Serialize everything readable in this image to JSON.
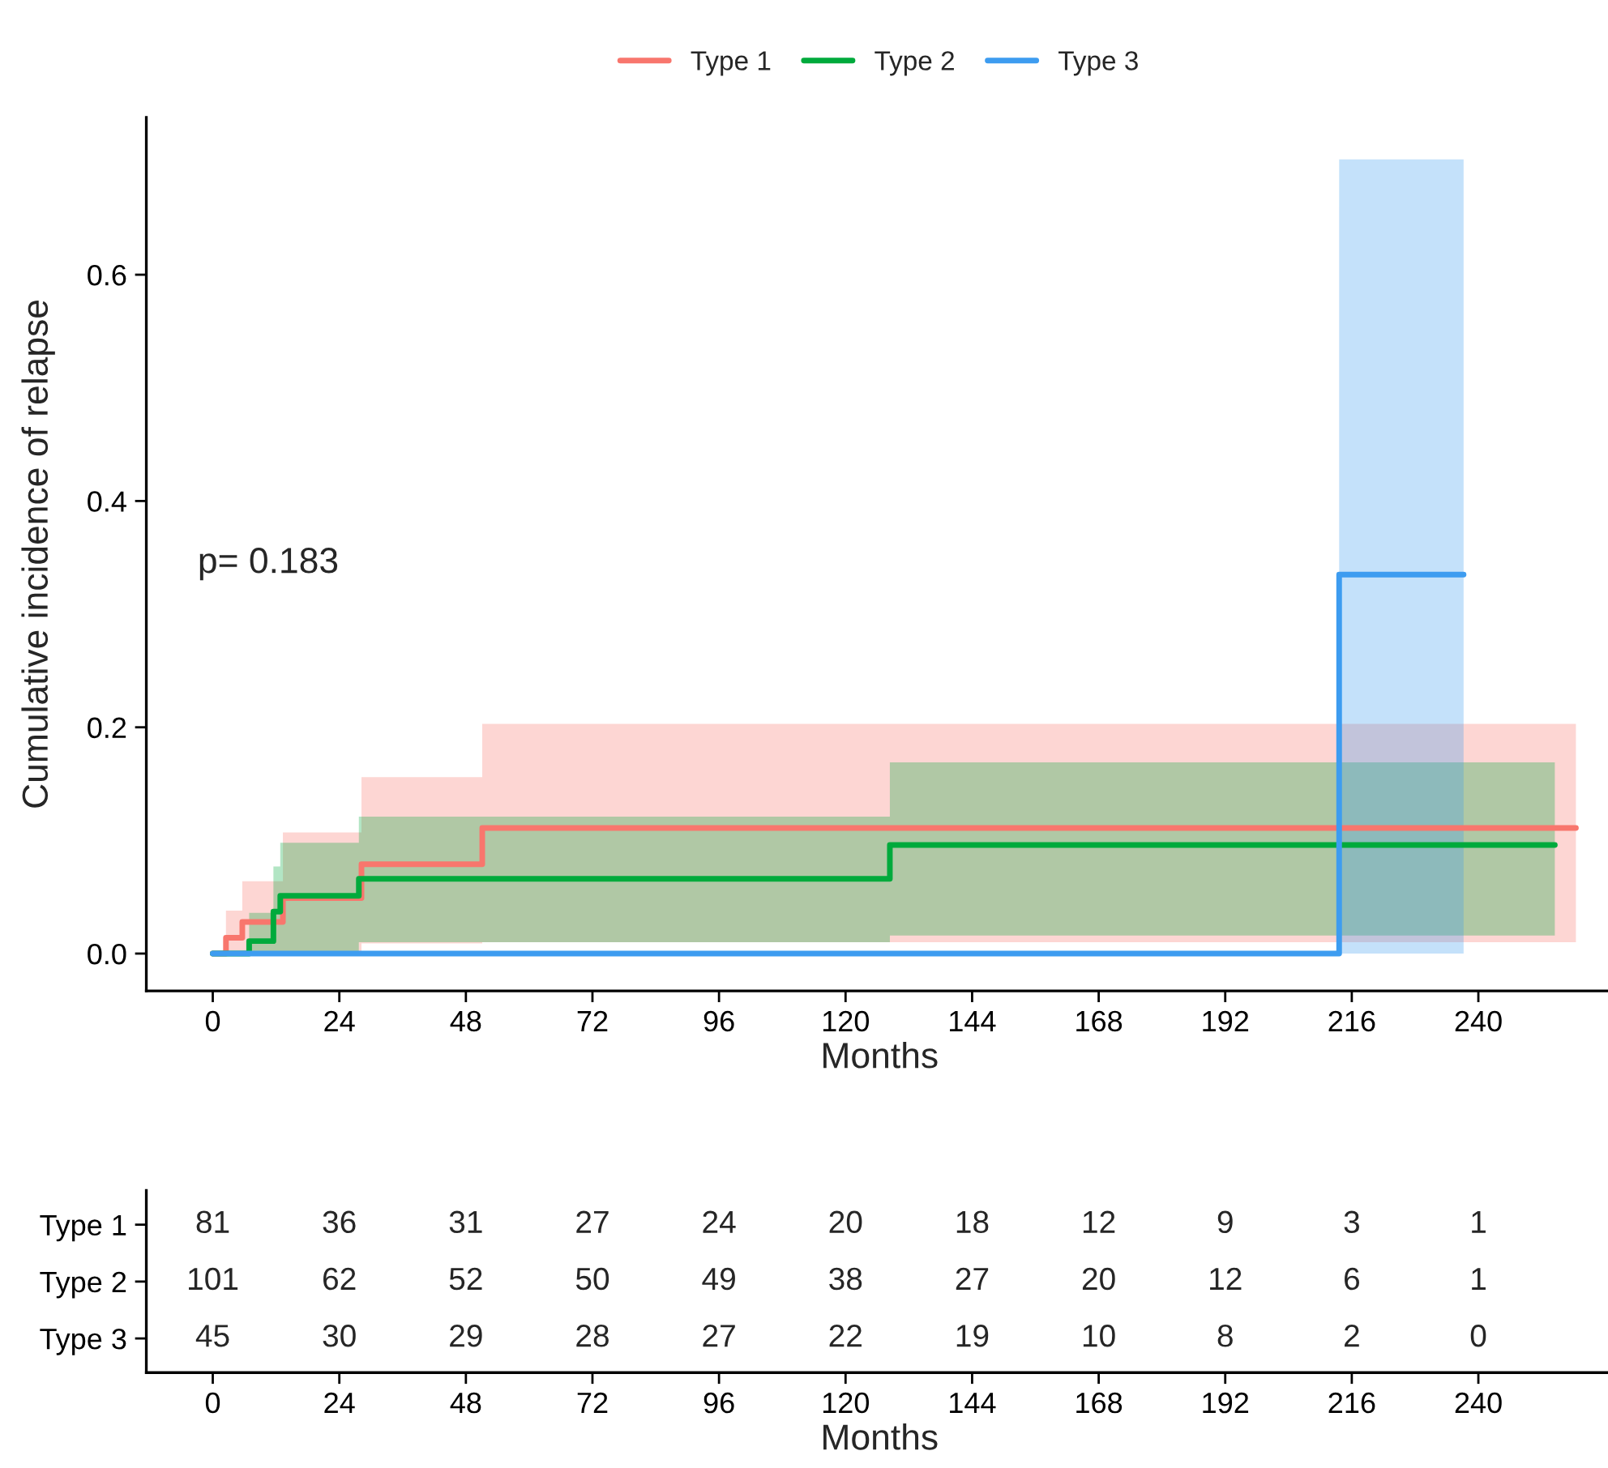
{
  "chart_data": [
    {
      "type": "step",
      "xlabel": "Months",
      "ylabel": "Cumulative incidence of relapse",
      "legend": "top",
      "xlim": [
        -12.6,
        265.5
      ],
      "ylim": [
        -0.033,
        0.739
      ],
      "xticks": [
        0,
        24,
        48,
        72,
        96,
        120,
        144,
        168,
        192,
        216,
        240
      ],
      "yticks": [
        {
          "value": 0,
          "label": "0.0"
        },
        {
          "value": 0.2,
          "label": "0.2"
        },
        {
          "value": 0.4,
          "label": "0.4"
        },
        {
          "value": 0.6,
          "label": "0.6"
        }
      ],
      "grid": false,
      "annotations": [
        "p= 0.183"
      ],
      "series": [
        {
          "name": "Type 1",
          "color": "#f8766d",
          "x": [
            0,
            2.5,
            5.6,
            13.3,
            28.2,
            51.1,
            258.5
          ],
          "values": [
            0,
            0.014,
            0.028,
            0.049,
            0.079,
            0.111,
            0.111
          ],
          "lower": [
            0,
            0,
            0,
            0,
            0.009,
            0.01,
            0.01
          ],
          "upper": [
            0,
            0.038,
            0.064,
            0.107,
            0.156,
            0.203,
            0.203
          ]
        },
        {
          "name": "Type 2",
          "color": "#00aa3c",
          "x": [
            0,
            6.9,
            11.5,
            12.8,
            27.7,
            128.4,
            254.5
          ],
          "values": [
            0,
            0.011,
            0.037,
            0.051,
            0.066,
            0.096,
            0.096
          ],
          "lower": [
            0,
            0,
            0,
            0,
            0.01,
            0.016,
            0.016
          ],
          "upper": [
            0,
            0.036,
            0.077,
            0.098,
            0.121,
            0.169,
            0.169
          ]
        },
        {
          "name": "Type 3",
          "color": "#3d9cf0",
          "x": [
            0,
            213.6,
            237.2
          ],
          "values": [
            0,
            0.335,
            0.335
          ],
          "lower": [
            0,
            0,
            0
          ],
          "upper": [
            0,
            0.702,
            0.702
          ]
        }
      ]
    },
    {
      "type": "heatmap",
      "xlabel": "Months",
      "data_labels": true,
      "categories": [
        "0",
        "24",
        "48",
        "72",
        "96",
        "120",
        "144",
        "168",
        "192",
        "216",
        "240"
      ],
      "y_categories": [
        "Type 1",
        "Type 2",
        "Type 3"
      ],
      "cells": [
        [
          81,
          36,
          31,
          27,
          24,
          20,
          18,
          12,
          9,
          3,
          1
        ],
        [
          101,
          62,
          52,
          50,
          49,
          38,
          27,
          20,
          12,
          6,
          1
        ],
        [
          45,
          30,
          29,
          28,
          27,
          22,
          19,
          10,
          8,
          2,
          0
        ]
      ]
    }
  ]
}
